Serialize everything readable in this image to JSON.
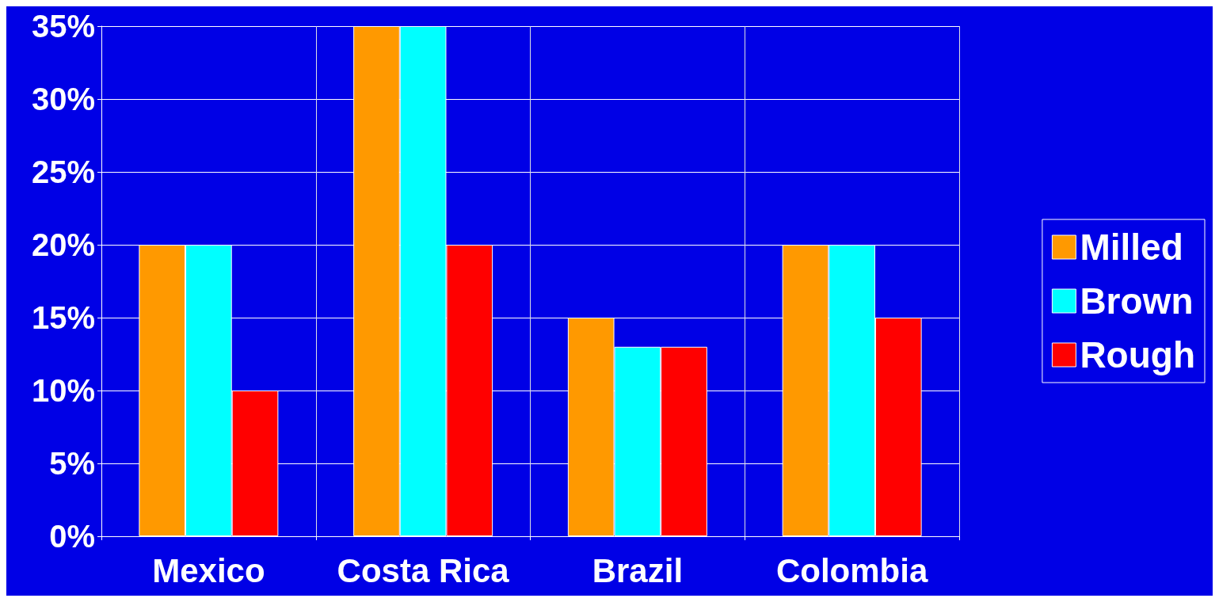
{
  "chart_data": {
    "type": "bar",
    "categories": [
      "Mexico",
      "Costa Rica",
      "Brazil",
      "Colombia"
    ],
    "series": [
      {
        "name": "Milled",
        "color": "#ff9900",
        "values": [
          20,
          35,
          15,
          20
        ]
      },
      {
        "name": "Brown",
        "color": "#00ffff",
        "values": [
          20,
          35,
          13,
          20
        ]
      },
      {
        "name": "Rough",
        "color": "#ff0000",
        "values": [
          10,
          20,
          13,
          15
        ]
      }
    ],
    "ylim": [
      0,
      35
    ],
    "yticks": [
      {
        "value": 0,
        "label": "0%"
      },
      {
        "value": 5,
        "label": "5%"
      },
      {
        "value": 10,
        "label": "10%"
      },
      {
        "value": 15,
        "label": "15%"
      },
      {
        "value": 20,
        "label": "20%"
      },
      {
        "value": 25,
        "label": "25%"
      },
      {
        "value": 30,
        "label": "30%"
      },
      {
        "value": 35,
        "label": "35%"
      }
    ],
    "grid": true,
    "legend": "right"
  }
}
